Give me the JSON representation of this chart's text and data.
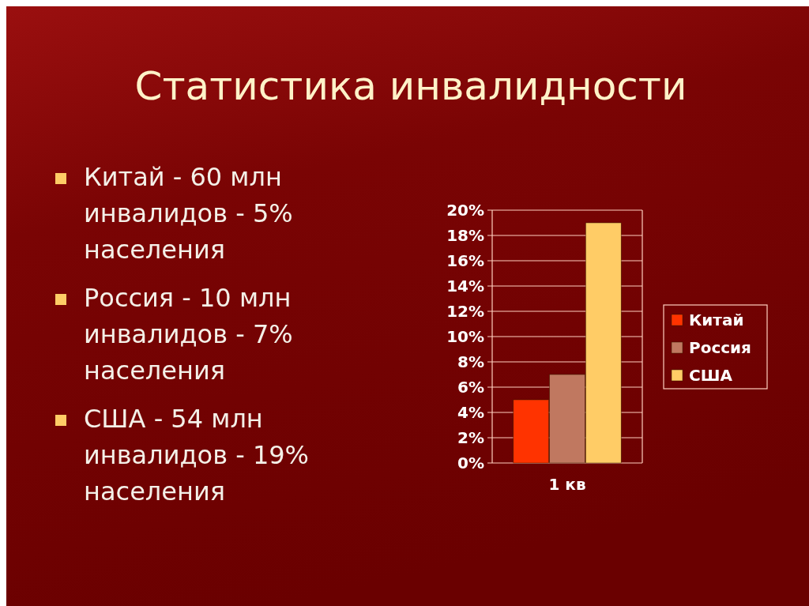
{
  "chart_data": {
    "type": "bar",
    "title": "Статистика инвалидности",
    "annotations": [
      "Китай - 60 млн инвалидов - 5% населения",
      "Россия - 10 млн инвалидов - 7% населения",
      "США - 54 млн инвалидов - 19% населения"
    ],
    "categories": [
      "1 кв"
    ],
    "series": [
      {
        "name": "Китай",
        "color": "#ff3300",
        "values": [
          5
        ]
      },
      {
        "name": "Россия",
        "color": "#c07860",
        "values": [
          7
        ]
      },
      {
        "name": "США",
        "color": "#ffcc66",
        "values": [
          19
        ]
      }
    ],
    "ylim": [
      0,
      20
    ],
    "yticks": [
      {
        "value": 0,
        "label": "0%"
      },
      {
        "value": 2,
        "label": "2%"
      },
      {
        "value": 4,
        "label": "4%"
      },
      {
        "value": 6,
        "label": "6%"
      },
      {
        "value": 8,
        "label": "8%"
      },
      {
        "value": 10,
        "label": "10%"
      },
      {
        "value": 12,
        "label": "12%"
      },
      {
        "value": 14,
        "label": "14%"
      },
      {
        "value": 16,
        "label": "16%"
      },
      {
        "value": 18,
        "label": "18%"
      },
      {
        "value": 20,
        "label": "20%"
      }
    ],
    "grid": "y",
    "legend": "right"
  }
}
